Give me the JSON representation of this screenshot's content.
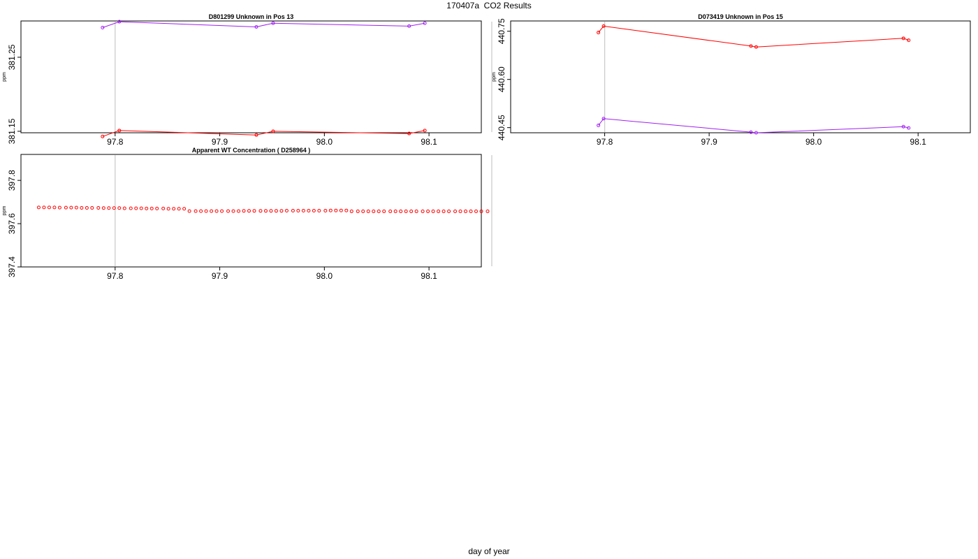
{
  "page": {
    "title": "170407a  CO2 Results",
    "xlabel": "day of year"
  },
  "chart_data": [
    {
      "type": "line",
      "title": "D801299     Unknown in Pos 13",
      "xlabel": "",
      "ylabel": "ppm",
      "xlim": [
        97.71,
        98.15
      ],
      "ylim": [
        381.148,
        381.299
      ],
      "xticks": [
        "97.8",
        "97.9",
        "98.0",
        "98.1"
      ],
      "yticks": [
        "381.15",
        "381.25"
      ],
      "vlines": [
        97.8,
        98.16
      ],
      "series": [
        {
          "color": "#a020f0",
          "x": [
            97.788,
            97.804,
            97.935,
            97.951,
            98.081,
            98.096
          ],
          "y": [
            381.29,
            381.298,
            381.291,
            381.296,
            381.292,
            381.296
          ]
        },
        {
          "color": "#ff0000",
          "x": [
            97.788,
            97.804,
            97.935,
            97.951,
            98.081,
            98.096
          ],
          "y": [
            381.143,
            381.151,
            381.145,
            381.15,
            381.147,
            381.151
          ]
        }
      ]
    },
    {
      "type": "line",
      "title": "D073419     Unknown in Pos 15",
      "xlabel": "",
      "ylabel": "ppm",
      "xlim": [
        97.71,
        98.15
      ],
      "ylim": [
        440.434,
        440.782
      ],
      "xticks": [
        "97.8",
        "97.9",
        "98.0",
        "98.1"
      ],
      "yticks": [
        "440.45",
        "440.60",
        "440.75"
      ],
      "vlines": [
        97.8,
        98.16
      ],
      "series": [
        {
          "color": "#ff0000",
          "x": [
            97.794,
            97.799,
            97.94,
            97.945,
            98.086,
            98.091
          ],
          "y": [
            440.746,
            440.766,
            440.704,
            440.701,
            440.728,
            440.722
          ]
        },
        {
          "color": "#a020f0",
          "x": [
            97.794,
            97.799,
            97.94,
            97.945,
            98.086,
            98.091
          ],
          "y": [
            440.457,
            440.478,
            440.436,
            440.434,
            440.453,
            440.449
          ]
        }
      ]
    },
    {
      "type": "scatter",
      "title": "Apparent WT Concentration ( D258964 )",
      "xlabel": "",
      "ylabel": "ppm",
      "xlim": [
        97.71,
        98.15
      ],
      "ylim": [
        397.4,
        397.92
      ],
      "xticks": [
        "97.8",
        "97.9",
        "98.0",
        "98.1"
      ],
      "yticks": [
        "397.4",
        "397.6",
        "397.8"
      ],
      "vlines": [
        97.8,
        98.16
      ],
      "series": [
        {
          "color": "#ff0000",
          "x": [
            97.727,
            97.732,
            97.737,
            97.742,
            97.747,
            97.753,
            97.758,
            97.763,
            97.768,
            97.773,
            97.778,
            97.784,
            97.789,
            97.794,
            97.799,
            97.804,
            97.809,
            97.815,
            97.82,
            97.825,
            97.83,
            97.835,
            97.84,
            97.846,
            97.851,
            97.856,
            97.861,
            97.866,
            97.871,
            97.877,
            97.882,
            97.887,
            97.892,
            97.897,
            97.902,
            97.908,
            97.913,
            97.918,
            97.923,
            97.928,
            97.933,
            97.939,
            97.944,
            97.949,
            97.954,
            97.959,
            97.964,
            97.97,
            97.975,
            97.98,
            97.985,
            97.99,
            97.995,
            98.001,
            98.006,
            98.011,
            98.016,
            98.021,
            98.026,
            98.032,
            98.037,
            98.042,
            98.047,
            98.052,
            98.057,
            98.063,
            98.068,
            98.073,
            98.078,
            98.083,
            98.088,
            98.094,
            98.099,
            98.104,
            98.109,
            98.114,
            98.119,
            98.125,
            98.13,
            98.135,
            98.14,
            98.145,
            98.15,
            98.156
          ],
          "y": [
            397.675,
            397.675,
            397.675,
            397.675,
            397.674,
            397.674,
            397.674,
            397.674,
            397.673,
            397.673,
            397.673,
            397.673,
            397.672,
            397.672,
            397.672,
            397.672,
            397.671,
            397.671,
            397.671,
            397.671,
            397.67,
            397.67,
            397.67,
            397.67,
            397.669,
            397.669,
            397.669,
            397.669,
            397.658,
            397.658,
            397.658,
            397.658,
            397.658,
            397.658,
            397.658,
            397.658,
            397.658,
            397.658,
            397.659,
            397.659,
            397.659,
            397.659,
            397.659,
            397.659,
            397.659,
            397.659,
            397.66,
            397.66,
            397.66,
            397.66,
            397.66,
            397.66,
            397.66,
            397.66,
            397.661,
            397.661,
            397.661,
            397.661,
            397.657,
            397.657,
            397.657,
            397.657,
            397.657,
            397.657,
            397.657,
            397.657,
            397.657,
            397.657,
            397.657,
            397.657,
            397.657,
            397.657,
            397.657,
            397.657,
            397.657,
            397.657,
            397.657,
            397.657,
            397.657,
            397.657,
            397.657,
            397.657,
            397.657,
            397.657
          ]
        }
      ]
    }
  ]
}
